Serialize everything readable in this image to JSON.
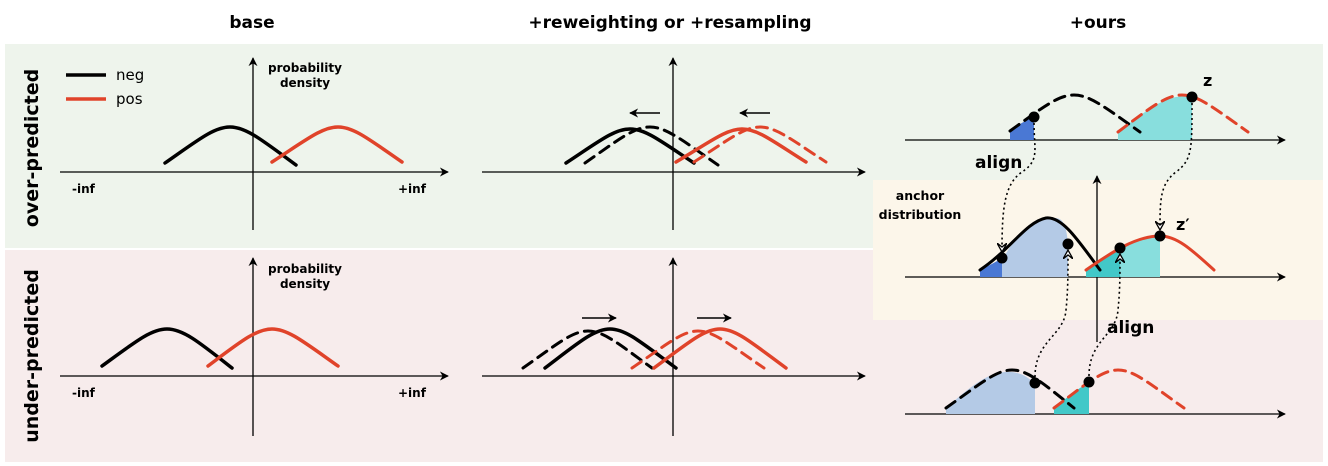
{
  "columns": {
    "base": "base",
    "middle": "+reweighting or +resampling",
    "ours": "+ours"
  },
  "rows": {
    "over": "over-predicted",
    "under": "under-predicted"
  },
  "legend": {
    "neg": "neg",
    "pos": "pos"
  },
  "axis": {
    "density_line1": "probability",
    "density_line2": "density",
    "neg_inf": "-inf",
    "pos_inf": "+inf"
  },
  "ours": {
    "align": "align",
    "z": "z",
    "z_prime": "z′",
    "anchor_line1": "anchor",
    "anchor_line2": "distribution"
  },
  "colors": {
    "neg": "#000000",
    "pos": "#e0432a",
    "over_bg": "#eef4ec",
    "under_bg": "#f7ecec",
    "anchor_bg": "#fcf6ea",
    "fill_light_blue": "#b4cae6",
    "fill_blue": "#4a78d4",
    "fill_cyan": "#88dedd",
    "fill_teal": "#42c8c8"
  }
}
